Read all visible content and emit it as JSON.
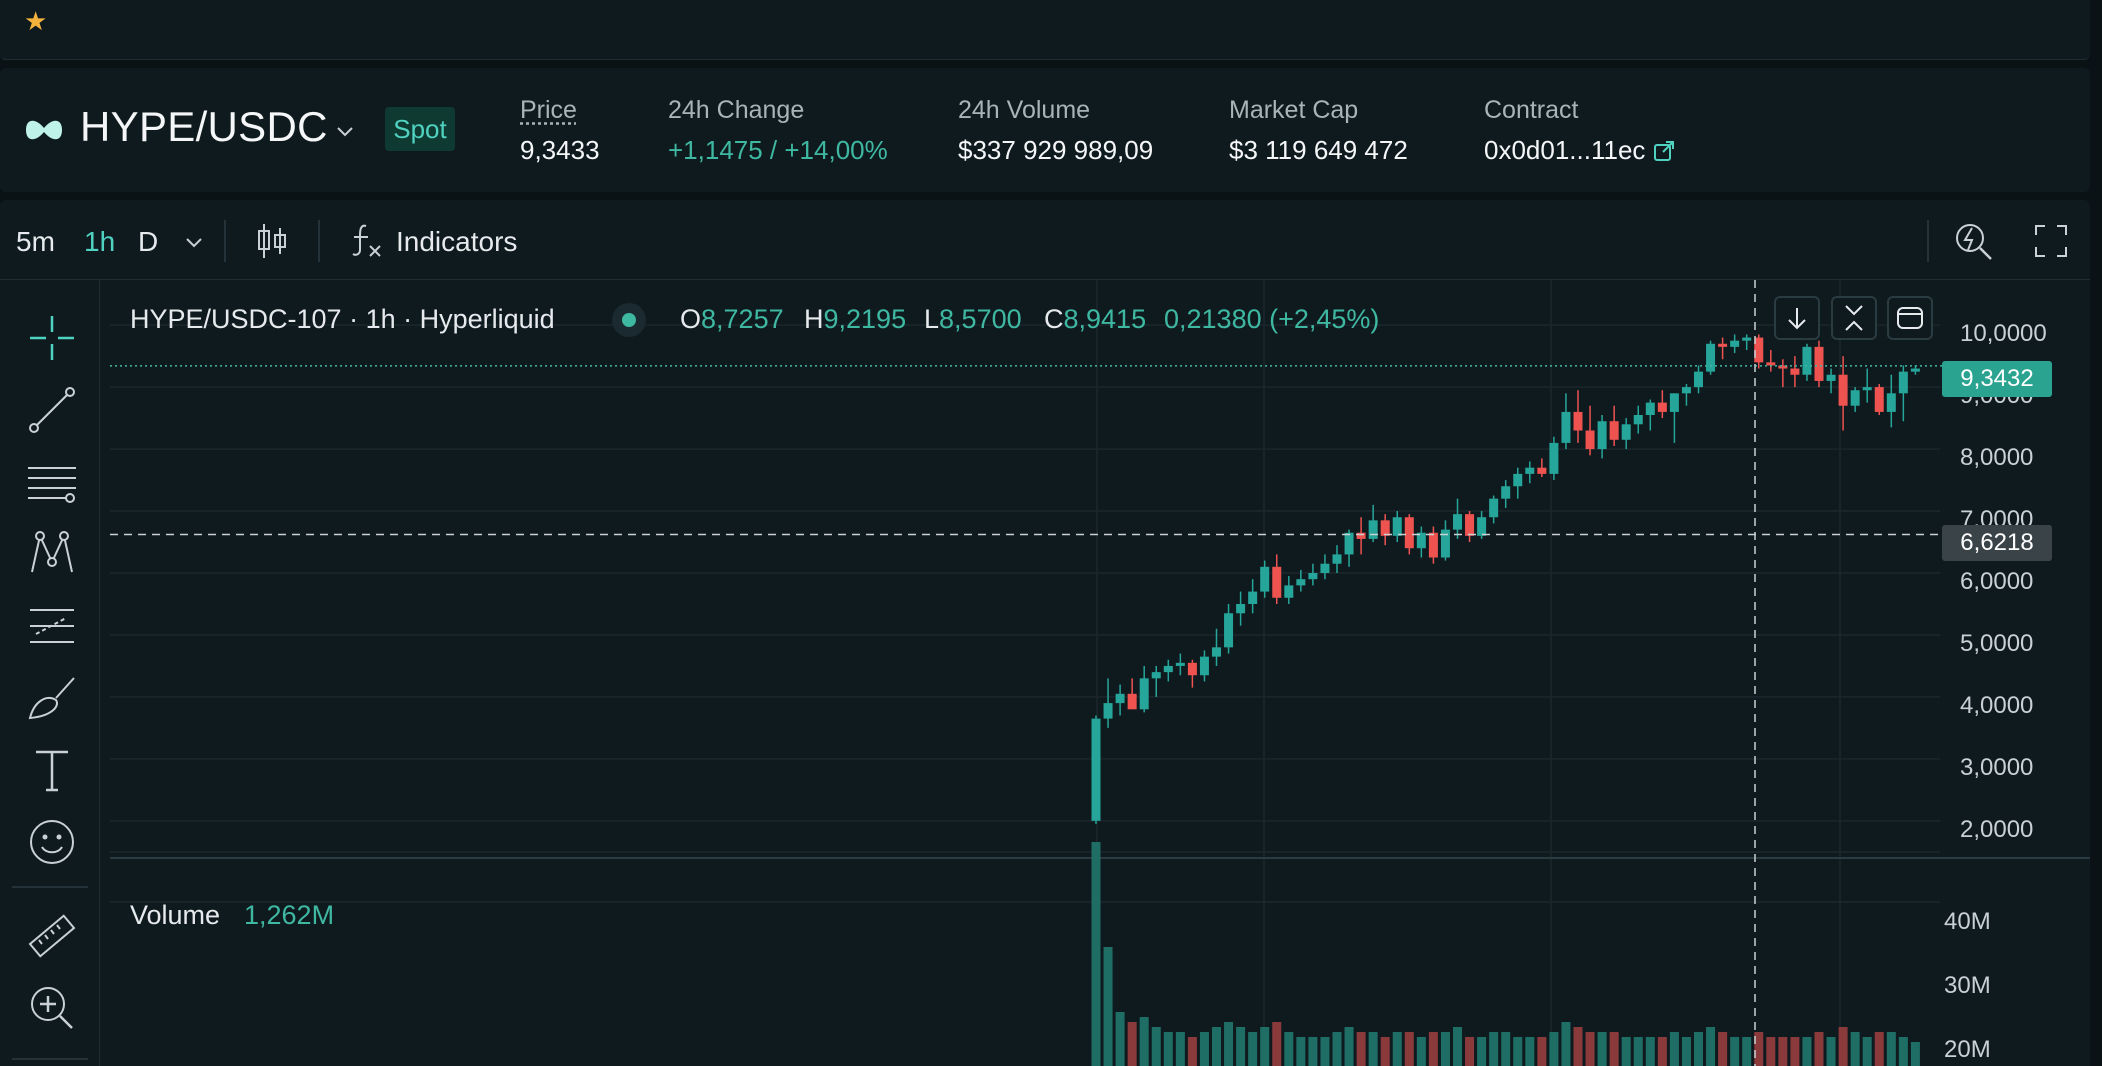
{
  "top": {
    "star_icon": "star-icon"
  },
  "ticker": {
    "pair": "HYPE/USDC",
    "market_type": "Spot",
    "price_label": "Price",
    "price_value": "9,3433",
    "change_label": "24h Change",
    "change_value": "+1,1475 / +14,00%",
    "volume_label": "24h Volume",
    "volume_value": "$337 929 989,09",
    "mcap_label": "Market Cap",
    "mcap_value": "$3 119 649 472",
    "contract_label": "Contract",
    "contract_value": "0x0d01...11ec"
  },
  "toolbar": {
    "timeframes": [
      "5m",
      "1h",
      "D"
    ],
    "active_timeframe": "1h",
    "indicators_label": "Indicators"
  },
  "legend": {
    "title": "HYPE/USDC-107 · 1h · Hyperliquid",
    "o_key": "O",
    "o_val": "8,7257",
    "h_key": "H",
    "h_val": "9,2195",
    "l_key": "L",
    "l_val": "8,5700",
    "c_key": "C",
    "c_val": "8,9415",
    "change": "0,21380 (+2,45%)"
  },
  "price_axis": {
    "ticks": [
      "10,0000",
      "9,0000",
      "8,0000",
      "7,0000",
      "6,0000",
      "5,0000",
      "4,0000",
      "3,0000",
      "2,0000"
    ],
    "current_price": "9,3432",
    "crosshair_price": "6,6218"
  },
  "volume": {
    "label": "Volume",
    "value": "1,262M",
    "ticks": [
      "40M",
      "30M",
      "20M"
    ]
  },
  "colors": {
    "up": "#26a69a",
    "down": "#ef5350",
    "accent": "#50d2c1"
  },
  "chart_data": {
    "type": "candlestick",
    "title": "HYPE/USDC-107 · 1h · Hyperliquid",
    "ylim": [
      1.4,
      10.6
    ],
    "volume_ylim": [
      0,
      45
    ],
    "y_ticks": [
      10,
      9,
      8,
      7,
      6,
      5,
      4,
      3,
      2
    ],
    "current_price": 9.3432,
    "crosshair_price": 6.6218,
    "candles": [
      [
        2.0,
        3.7,
        1.95,
        3.65
      ],
      [
        3.65,
        4.3,
        3.5,
        3.9
      ],
      [
        3.9,
        4.2,
        3.7,
        4.05
      ],
      [
        4.05,
        4.3,
        3.85,
        3.8
      ],
      [
        3.8,
        4.5,
        3.75,
        4.3
      ],
      [
        4.3,
        4.5,
        4.0,
        4.4
      ],
      [
        4.4,
        4.6,
        4.25,
        4.5
      ],
      [
        4.5,
        4.7,
        4.35,
        4.55
      ],
      [
        4.55,
        4.6,
        4.15,
        4.35
      ],
      [
        4.35,
        4.75,
        4.25,
        4.65
      ],
      [
        4.65,
        5.1,
        4.5,
        4.8
      ],
      [
        4.8,
        5.5,
        4.7,
        5.35
      ],
      [
        5.35,
        5.7,
        5.15,
        5.5
      ],
      [
        5.5,
        5.9,
        5.35,
        5.7
      ],
      [
        5.7,
        6.2,
        5.6,
        6.1
      ],
      [
        6.1,
        6.3,
        5.5,
        5.6
      ],
      [
        5.6,
        5.95,
        5.5,
        5.8
      ],
      [
        5.8,
        6.05,
        5.7,
        5.9
      ],
      [
        5.9,
        6.15,
        5.8,
        6.0
      ],
      [
        6.0,
        6.3,
        5.9,
        6.15
      ],
      [
        6.15,
        6.45,
        6.0,
        6.3
      ],
      [
        6.3,
        6.7,
        6.1,
        6.65
      ],
      [
        6.65,
        6.9,
        6.3,
        6.55
      ],
      [
        6.55,
        7.1,
        6.5,
        6.85
      ],
      [
        6.85,
        6.95,
        6.45,
        6.6
      ],
      [
        6.6,
        7.0,
        6.5,
        6.9
      ],
      [
        6.9,
        6.95,
        6.3,
        6.4
      ],
      [
        6.4,
        6.75,
        6.25,
        6.65
      ],
      [
        6.65,
        6.75,
        6.15,
        6.25
      ],
      [
        6.25,
        6.85,
        6.2,
        6.7
      ],
      [
        6.7,
        7.2,
        6.55,
        6.95
      ],
      [
        6.95,
        7.0,
        6.5,
        6.6
      ],
      [
        6.6,
        7.0,
        6.55,
        6.9
      ],
      [
        6.9,
        7.25,
        6.8,
        7.2
      ],
      [
        7.2,
        7.5,
        7.05,
        7.4
      ],
      [
        7.4,
        7.7,
        7.2,
        7.6
      ],
      [
        7.6,
        7.8,
        7.45,
        7.7
      ],
      [
        7.7,
        7.85,
        7.55,
        7.6
      ],
      [
        7.6,
        8.2,
        7.5,
        8.1
      ],
      [
        8.1,
        8.9,
        8.0,
        8.6
      ],
      [
        8.6,
        8.95,
        8.1,
        8.3
      ],
      [
        8.3,
        8.7,
        7.9,
        8.0
      ],
      [
        8.0,
        8.55,
        7.85,
        8.45
      ],
      [
        8.45,
        8.7,
        8.05,
        8.15
      ],
      [
        8.15,
        8.5,
        8.0,
        8.4
      ],
      [
        8.4,
        8.7,
        8.25,
        8.55
      ],
      [
        8.55,
        8.8,
        8.3,
        8.75
      ],
      [
        8.75,
        8.95,
        8.5,
        8.6
      ],
      [
        8.6,
        8.9,
        8.1,
        8.9
      ],
      [
        8.9,
        9.05,
        8.7,
        9.0
      ],
      [
        9.0,
        9.35,
        8.9,
        9.25
      ],
      [
        9.25,
        9.75,
        9.2,
        9.7
      ],
      [
        9.7,
        9.8,
        9.45,
        9.65
      ],
      [
        9.65,
        9.85,
        9.55,
        9.75
      ],
      [
        9.75,
        9.85,
        9.6,
        9.8
      ],
      [
        9.8,
        9.85,
        9.3,
        9.4
      ],
      [
        9.4,
        9.6,
        9.25,
        9.35
      ],
      [
        9.35,
        9.45,
        9.0,
        9.3
      ],
      [
        9.3,
        9.5,
        9.0,
        9.2
      ],
      [
        9.2,
        9.7,
        9.1,
        9.65
      ],
      [
        9.65,
        9.75,
        9.0,
        9.1
      ],
      [
        9.1,
        9.3,
        8.9,
        9.2
      ],
      [
        9.2,
        9.5,
        8.3,
        8.7
      ],
      [
        8.7,
        9.0,
        8.6,
        8.95
      ],
      [
        8.95,
        9.3,
        8.75,
        9.0
      ],
      [
        9.0,
        9.05,
        8.55,
        8.6
      ],
      [
        8.6,
        9.2,
        8.35,
        8.9
      ],
      [
        8.9,
        9.35,
        8.45,
        9.25
      ],
      [
        9.25,
        9.35,
        9.2,
        9.3
      ]
    ],
    "volumes": [
      42,
      21,
      8,
      6,
      7,
      5,
      4,
      4,
      3,
      4,
      5,
      6,
      5,
      4,
      5,
      6,
      4,
      3,
      3,
      3,
      4,
      5,
      4,
      4,
      3,
      4,
      4,
      3,
      4,
      4,
      5,
      3,
      3,
      4,
      4,
      3,
      3,
      3,
      4,
      6,
      5,
      4,
      4,
      4,
      3,
      3,
      3,
      3,
      4,
      3,
      4,
      5,
      4,
      3,
      3,
      4,
      3,
      3,
      3,
      3,
      4,
      3,
      5,
      4,
      3,
      4,
      4,
      3,
      2
    ]
  }
}
